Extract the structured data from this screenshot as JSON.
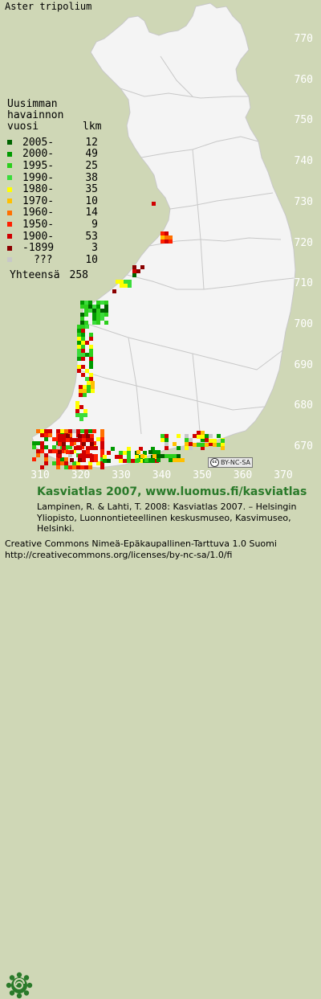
{
  "species": "Aster tripolium",
  "legend": {
    "header": [
      "Uusimman",
      "havainnon"
    ],
    "col_year": "vuosi",
    "col_count": "lkm",
    "rows": [
      {
        "period": "2005-",
        "count": "12",
        "color": "#006400"
      },
      {
        "period": "2000-",
        "count": "49",
        "color": "#009a00"
      },
      {
        "period": "1995-",
        "count": "25",
        "color": "#2ccf1c"
      },
      {
        "period": "1990-",
        "count": "38",
        "color": "#3bdc3b"
      },
      {
        "period": "1980-",
        "count": "35",
        "color": "#ffff00"
      },
      {
        "period": "1970-",
        "count": "10",
        "color": "#ffc000"
      },
      {
        "period": "1960-",
        "count": "14",
        "color": "#ff7000"
      },
      {
        "period": "1950-",
        "count": "9",
        "color": "#ff2000"
      },
      {
        "period": "1900-",
        "count": "53",
        "color": "#d00000"
      },
      {
        "period": "-1899",
        "count": "3",
        "color": "#8b0000"
      },
      {
        "period": "???",
        "count": "10",
        "color": "#c8c8c8"
      }
    ],
    "total_label": "Yhteensä",
    "total_count": "258"
  },
  "axes": {
    "northing": [
      "770",
      "760",
      "750",
      "740",
      "730",
      "720",
      "710",
      "700",
      "690",
      "680",
      "670"
    ],
    "easting": [
      "310",
      "320",
      "330",
      "340",
      "350",
      "360",
      "370"
    ]
  },
  "colors": {
    "land": "#f4f4f4",
    "background": "#cfd7b6",
    "border": "#c8c8c8",
    "brand_green": "#2a7a2a"
  },
  "license_badge": "BY-NC-SA",
  "footer": {
    "title": "Kasviatlas 2007, www.luomus.fi/kasviatlas",
    "citation": "Lampinen, R. & Lahti, T. 2008: Kasviatlas 2007. – Helsingin Yliopisto, Luonnontieteellinen keskusmuseo, Kasvimuseo, Helsinki.",
    "cc_line1": "Creative Commons Nimeä-Epäkaupallinen-Tarttuva 1.0 Suomi",
    "cc_line2": "http://creativecommons.org/licenses/by-nc-sa/1.0/fi"
  },
  "icons": {
    "logo": "kasviatlas-spiral-logo",
    "cc": "creative-commons-icon"
  }
}
